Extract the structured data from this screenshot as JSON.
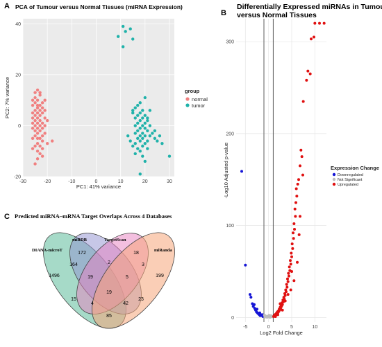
{
  "chart_data": [
    {
      "panel": "A",
      "type": "scatter",
      "title": "PCA of Tumour versus Normal Tissues (miRNA Expression)",
      "xlabel": "PC1: 41% variance",
      "ylabel": "PC2: 7% variance",
      "xlim": [
        -30,
        32
      ],
      "ylim": [
        -20,
        42
      ],
      "xticks": [
        -30,
        -20,
        -10,
        0,
        10,
        20,
        30
      ],
      "yticks": [
        -20,
        0,
        20,
        40
      ],
      "legend": {
        "title": "group",
        "placement": "right"
      },
      "series": [
        {
          "name": "normal",
          "color": "#F08080",
          "points": [
            [
              -25,
              13
            ],
            [
              -24,
              14
            ],
            [
              -23,
              12
            ],
            [
              -25,
              11
            ],
            [
              -24,
              10
            ],
            [
              -26,
              10
            ],
            [
              -22,
              9
            ],
            [
              -25,
              9
            ],
            [
              -23,
              8
            ],
            [
              -24,
              8
            ],
            [
              -26,
              8
            ],
            [
              -21,
              10
            ],
            [
              -24,
              7
            ],
            [
              -22,
              7
            ],
            [
              -25,
              6
            ],
            [
              -23,
              6
            ],
            [
              -26,
              5
            ],
            [
              -24,
              5
            ],
            [
              -22,
              5
            ],
            [
              -23,
              4
            ],
            [
              -25,
              4
            ],
            [
              -24,
              3
            ],
            [
              -21,
              3
            ],
            [
              -26,
              3
            ],
            [
              -23,
              2
            ],
            [
              -25,
              2
            ],
            [
              -22,
              1
            ],
            [
              -24,
              1
            ],
            [
              -26,
              1
            ],
            [
              -23,
              0
            ],
            [
              -21,
              0
            ],
            [
              -25,
              0
            ],
            [
              -24,
              -1
            ],
            [
              -22,
              -1
            ],
            [
              -26,
              -1
            ],
            [
              -23,
              -2
            ],
            [
              -25,
              -2
            ],
            [
              -24,
              -3
            ],
            [
              -21,
              -3
            ],
            [
              -22,
              -4
            ],
            [
              -25,
              -4
            ],
            [
              -23,
              -5
            ],
            [
              -24,
              -5
            ],
            [
              -26,
              -5
            ],
            [
              -22,
              -6
            ],
            [
              -24,
              -7
            ],
            [
              -23,
              -8
            ],
            [
              -25,
              -8
            ],
            [
              -22,
              -9
            ],
            [
              -24,
              -10
            ],
            [
              -23,
              -11
            ],
            [
              -20,
              -7
            ],
            [
              -18,
              -6
            ],
            [
              -24,
              -13
            ],
            [
              -25,
              -15
            ],
            [
              -21,
              6
            ],
            [
              -20,
              2
            ],
            [
              -26,
              -9
            ],
            [
              -22,
              -12
            ],
            [
              -23,
              13
            ]
          ]
        },
        {
          "name": "tumor",
          "color": "#20B2AA",
          "points": [
            [
              11,
              39
            ],
            [
              12,
              37
            ],
            [
              14,
              38
            ],
            [
              15,
              34
            ],
            [
              9,
              35
            ],
            [
              11,
              31
            ],
            [
              20,
              11
            ],
            [
              18,
              9
            ],
            [
              16,
              7
            ],
            [
              15,
              6
            ],
            [
              17,
              8
            ],
            [
              19,
              6
            ],
            [
              18,
              5
            ],
            [
              17,
              4
            ],
            [
              20,
              4
            ],
            [
              19,
              3
            ],
            [
              16,
              3
            ],
            [
              21,
              2
            ],
            [
              18,
              2
            ],
            [
              17,
              1
            ],
            [
              20,
              1
            ],
            [
              19,
              0
            ],
            [
              16,
              0
            ],
            [
              22,
              0
            ],
            [
              18,
              -1
            ],
            [
              20,
              -1
            ],
            [
              17,
              -2
            ],
            [
              21,
              -2
            ],
            [
              19,
              -3
            ],
            [
              16,
              -3
            ],
            [
              18,
              -4
            ],
            [
              20,
              -4
            ],
            [
              22,
              -4
            ],
            [
              17,
              -5
            ],
            [
              19,
              -5
            ],
            [
              21,
              -6
            ],
            [
              18,
              -6
            ],
            [
              20,
              -7
            ],
            [
              16,
              -7
            ],
            [
              19,
              -8
            ],
            [
              17,
              -9
            ],
            [
              15,
              -8
            ],
            [
              21,
              -9
            ],
            [
              18,
              -10
            ],
            [
              23,
              -3
            ],
            [
              24,
              -5
            ],
            [
              14,
              -6
            ],
            [
              13,
              -4
            ],
            [
              25,
              -6
            ],
            [
              26,
              -4
            ],
            [
              19,
              -12
            ],
            [
              20,
              -14
            ],
            [
              18,
              -19
            ],
            [
              30,
              -12
            ],
            [
              27,
              -7
            ],
            [
              15,
              5
            ],
            [
              22,
              6
            ],
            [
              24,
              -2
            ],
            [
              16,
              -11
            ],
            [
              21,
              3
            ]
          ]
        }
      ]
    },
    {
      "panel": "B",
      "type": "scatter",
      "title": "Differentially Expressed miRNAs in Tumour versus Normal Tissues",
      "title_lines": [
        "Differentially Expressed miRNAs in Tumour",
        "versus Normal Tissues"
      ],
      "xlabel": "Log2 Fold Change",
      "ylabel": "-Log10 Adjusted p-value",
      "xlim": [
        -7,
        12.5
      ],
      "ylim": [
        -5,
        325
      ],
      "xticks": [
        -5,
        0,
        5,
        10
      ],
      "yticks": [
        0,
        100,
        200,
        300
      ],
      "thresholds": {
        "vertical": [
          -1,
          1
        ]
      },
      "legend": {
        "title": "Expression Change",
        "placement": "right"
      },
      "series": [
        {
          "name": "Downregulated",
          "color": "#1515D6",
          "points": [
            [
              -5.8,
              159
            ],
            [
              -5,
              57
            ],
            [
              -4,
              25
            ],
            [
              -3.8,
              22
            ],
            [
              -3.5,
              15
            ],
            [
              -3.3,
              12
            ],
            [
              -3,
              10
            ],
            [
              -2.8,
              8
            ],
            [
              -2.6,
              6
            ],
            [
              -2.4,
              5
            ],
            [
              -2.2,
              4
            ],
            [
              -2,
              3
            ],
            [
              -1.8,
              2
            ],
            [
              -1.6,
              3
            ],
            [
              -1.4,
              2
            ],
            [
              -1.2,
              1
            ],
            [
              -3.1,
              14
            ],
            [
              -2.5,
              9
            ],
            [
              -1.9,
              5
            ],
            [
              -1.3,
              3
            ]
          ]
        },
        {
          "name": "Not Significant",
          "color": "#BDBDBD",
          "points": [
            [
              -0.8,
              0.5
            ],
            [
              -0.6,
              1
            ],
            [
              -0.4,
              0.5
            ],
            [
              -0.2,
              1.2
            ],
            [
              0,
              0.8
            ],
            [
              0.2,
              1
            ],
            [
              0.4,
              0.6
            ],
            [
              0.6,
              1.4
            ],
            [
              0.8,
              0.7
            ],
            [
              -0.7,
              1.8
            ],
            [
              0.5,
              2
            ],
            [
              -0.3,
              0.3
            ],
            [
              0.1,
              2.3
            ],
            [
              0.9,
              1.1
            ],
            [
              -0.9,
              2.5
            ],
            [
              0.3,
              0.2
            ]
          ]
        },
        {
          "name": "Upregulated",
          "color": "#E01010",
          "points": [
            [
              10,
              320
            ],
            [
              11,
              320
            ],
            [
              12,
              320
            ],
            [
              9.2,
              303
            ],
            [
              9.8,
              305
            ],
            [
              8.5,
              268
            ],
            [
              9,
              265
            ],
            [
              8.2,
              258
            ],
            [
              7.5,
              235
            ],
            [
              7,
              182
            ],
            [
              6.8,
              165
            ],
            [
              7.2,
              175
            ],
            [
              6.5,
              150
            ],
            [
              6.3,
              145
            ],
            [
              6,
              140
            ],
            [
              6.1,
              132
            ],
            [
              5.9,
              125
            ],
            [
              5.7,
              118
            ],
            [
              5.8,
              110
            ],
            [
              5.5,
              102
            ],
            [
              5.6,
              96
            ],
            [
              5.3,
              92
            ],
            [
              5.4,
              86
            ],
            [
              5.1,
              80
            ],
            [
              5.2,
              75
            ],
            [
              4.9,
              70
            ],
            [
              5,
              66
            ],
            [
              4.7,
              62
            ],
            [
              4.8,
              58
            ],
            [
              4.5,
              55
            ],
            [
              4.6,
              51
            ],
            [
              4.3,
              48
            ],
            [
              4.4,
              45
            ],
            [
              4.1,
              42
            ],
            [
              4.2,
              39
            ],
            [
              3.9,
              36
            ],
            [
              4,
              33
            ],
            [
              3.7,
              30
            ],
            [
              3.8,
              28
            ],
            [
              3.5,
              26
            ],
            [
              3.6,
              24
            ],
            [
              3.3,
              22
            ],
            [
              3.4,
              20
            ],
            [
              3.1,
              19
            ],
            [
              3.2,
              17
            ],
            [
              2.9,
              16
            ],
            [
              3,
              14
            ],
            [
              2.7,
              13
            ],
            [
              2.8,
              12
            ],
            [
              2.5,
              11
            ],
            [
              2.6,
              10
            ],
            [
              2.3,
              9
            ],
            [
              2.4,
              8
            ],
            [
              2.1,
              7
            ],
            [
              2.2,
              6.5
            ],
            [
              1.9,
              6
            ],
            [
              2,
              5
            ],
            [
              1.7,
              4.5
            ],
            [
              1.8,
              4
            ],
            [
              1.5,
              3.5
            ],
            [
              1.6,
              3
            ],
            [
              1.3,
              2.5
            ],
            [
              1.4,
              2
            ],
            [
              1.2,
              1.5
            ],
            [
              1.1,
              1
            ],
            [
              5.5,
              40
            ],
            [
              6.2,
              60
            ],
            [
              4.8,
              30
            ],
            [
              6.6,
              90
            ],
            [
              3.6,
              18
            ],
            [
              2.5,
              15
            ],
            [
              4.2,
              25
            ],
            [
              5,
              50
            ],
            [
              6.8,
              110
            ],
            [
              7.4,
              155
            ],
            [
              3,
              8
            ],
            [
              2,
              3
            ],
            [
              1.5,
              1
            ]
          ]
        }
      ]
    },
    {
      "panel": "C",
      "type": "table",
      "title": "Predicted miRNA–mRNA Target Overlaps Across 4 Databases",
      "sets": [
        {
          "name": "DIANA-microT",
          "color": "#5DBB9B"
        },
        {
          "name": "miRDB",
          "color": "#8F8FCF"
        },
        {
          "name": "TargetScan",
          "color": "#E77FC0"
        },
        {
          "name": "miRanda",
          "color": "#F5A57A"
        }
      ],
      "regions": [
        {
          "sets": [
            "DIANA-microT"
          ],
          "value": 1496
        },
        {
          "sets": [
            "miRDB"
          ],
          "value": 172
        },
        {
          "sets": [
            "TargetScan"
          ],
          "value": 18
        },
        {
          "sets": [
            "miRanda"
          ],
          "value": 199
        },
        {
          "sets": [
            "DIANA-microT",
            "miRDB"
          ],
          "value": 164
        },
        {
          "sets": [
            "miRDB",
            "TargetScan"
          ],
          "value": 2
        },
        {
          "sets": [
            "TargetScan",
            "miRanda"
          ],
          "value": 3
        },
        {
          "sets": [
            "DIANA-microT",
            "miRDB",
            "TargetScan"
          ],
          "value": 19
        },
        {
          "sets": [
            "miRDB",
            "TargetScan",
            "miRanda"
          ],
          "value": 5
        },
        {
          "sets": [
            "DIANA-microT",
            "TargetScan"
          ],
          "value": 15
        },
        {
          "sets": [
            "miRDB",
            "miRanda"
          ],
          "value": 23
        },
        {
          "sets": [
            "DIANA-microT",
            "miRDB",
            "TargetScan",
            "miRanda"
          ],
          "value": 19
        },
        {
          "sets": [
            "DIANA-microT",
            "TargetScan",
            "miRanda"
          ],
          "value": 4
        },
        {
          "sets": [
            "DIANA-microT",
            "miRDB",
            "miRanda"
          ],
          "value": 42
        },
        {
          "sets": [
            "DIANA-microT",
            "miRanda"
          ],
          "value": 85
        }
      ]
    }
  ],
  "labels": {
    "panel_a": "A",
    "panel_b": "B",
    "panel_c": "C"
  }
}
